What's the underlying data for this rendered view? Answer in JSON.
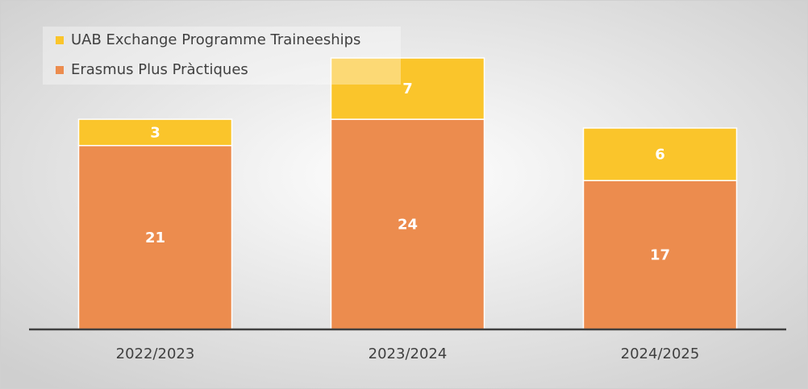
{
  "chart_data": {
    "type": "stacked_bar",
    "categories": [
      "2022/2023",
      "2023/2024",
      "2024/2025"
    ],
    "series": [
      {
        "name": "Erasmus Plus Pràctiques",
        "color": "#ec8c4e",
        "values": [
          21,
          24,
          17
        ]
      },
      {
        "name": "UAB Exchange Programme Traineeships",
        "color": "#fac52b",
        "values": [
          3,
          7,
          6
        ]
      }
    ],
    "legend": "top-left"
  }
}
